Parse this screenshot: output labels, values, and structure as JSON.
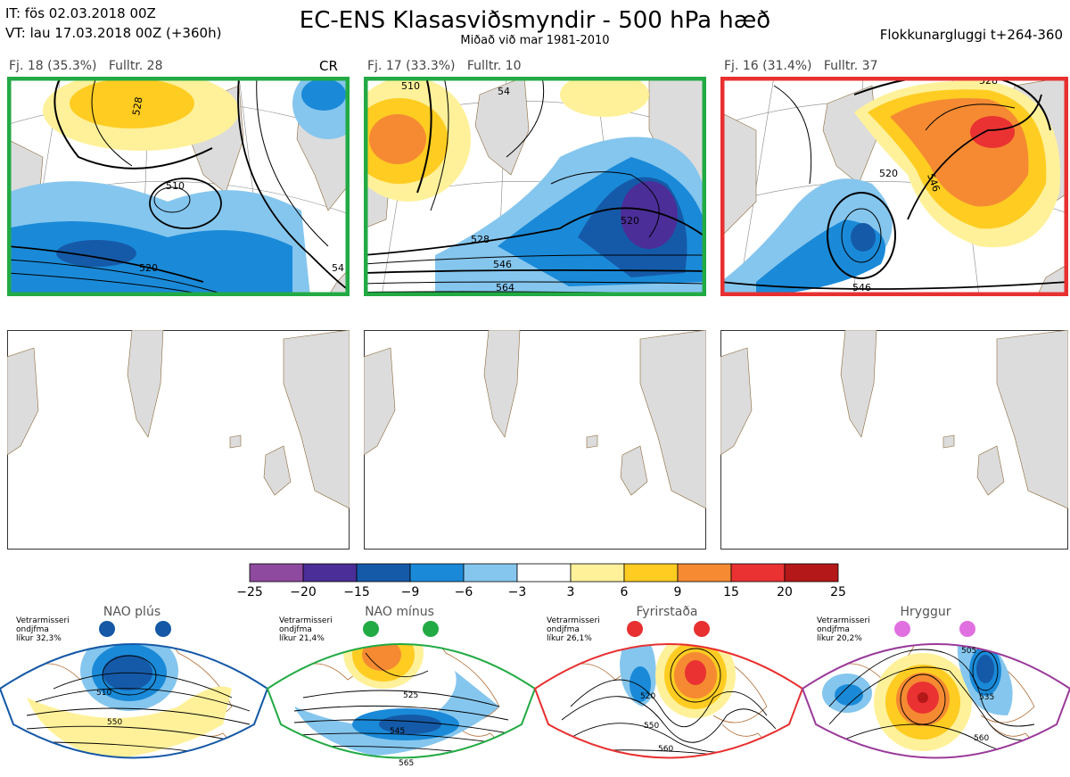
{
  "header": {
    "it_line": "IT: fös 02.03.2018 00Z",
    "vt_line": "VT: lau 17.03.2018 00Z  (+360h)",
    "title": "EC-ENS Klasasviðsmyndir - 500 hPa hæð",
    "subtitle": "Miðað við mar 1981-2010",
    "window": "Flokkunargluggi t+264-360"
  },
  "clusters": [
    {
      "label": "Fj. 18 (35.3%)",
      "full": "Fulltr. 28",
      "tag": "CR",
      "border": "#22aa44",
      "contours": [
        "528",
        "510",
        "520",
        "54"
      ]
    },
    {
      "label": "Fj. 17 (33.3%)",
      "full": "Fulltr. 10",
      "tag": "",
      "border": "#22aa44",
      "contours": [
        "54",
        "528",
        "546",
        "564",
        "520",
        "510"
      ]
    },
    {
      "label": "Fj. 16 (31.4%)",
      "full": "Fulltr. 37",
      "tag": "",
      "border": "#e83030",
      "contours": [
        "528",
        "520",
        "546",
        "546"
      ]
    }
  ],
  "colorbar": {
    "ticks": [
      "−25",
      "−20",
      "−15",
      "−9",
      "−6",
      "−3",
      "3",
      "6",
      "9",
      "15",
      "20",
      "25"
    ],
    "colors": [
      "#8e4a9e",
      "#4b2e98",
      "#155aa8",
      "#1a8ad8",
      "#85c6ee",
      "#ffffff",
      "#fff19a",
      "#ffcc22",
      "#f58a32",
      "#ea3232",
      "#b41818"
    ]
  },
  "regimes": [
    {
      "name": "NAO plús",
      "note1": "Vetrarmisseri",
      "note2": "ondjfma",
      "note3": "líkur 32,3%",
      "color": "#1458a6",
      "contours": [
        "510",
        "550"
      ]
    },
    {
      "name": "NAO mínus",
      "note1": "Vetrarmisseri",
      "note2": "ondjfma",
      "note3": "líkur 21,4%",
      "color": "#22aa44",
      "contours": [
        "525",
        "545",
        "565"
      ]
    },
    {
      "name": "Fyrirstaða",
      "note1": "Vetrarmisseri",
      "note2": "ondjfma",
      "note3": "líkur 26,1%",
      "color": "#e83030",
      "contours": [
        "520",
        "550",
        "560"
      ]
    },
    {
      "name": "Hryggur",
      "note1": "Vetrarmisseri",
      "note2": "ondjfma",
      "note3": "líkur 20,2%",
      "color": "#e070e0",
      "contours": [
        "505",
        "535",
        "560"
      ]
    }
  ]
}
